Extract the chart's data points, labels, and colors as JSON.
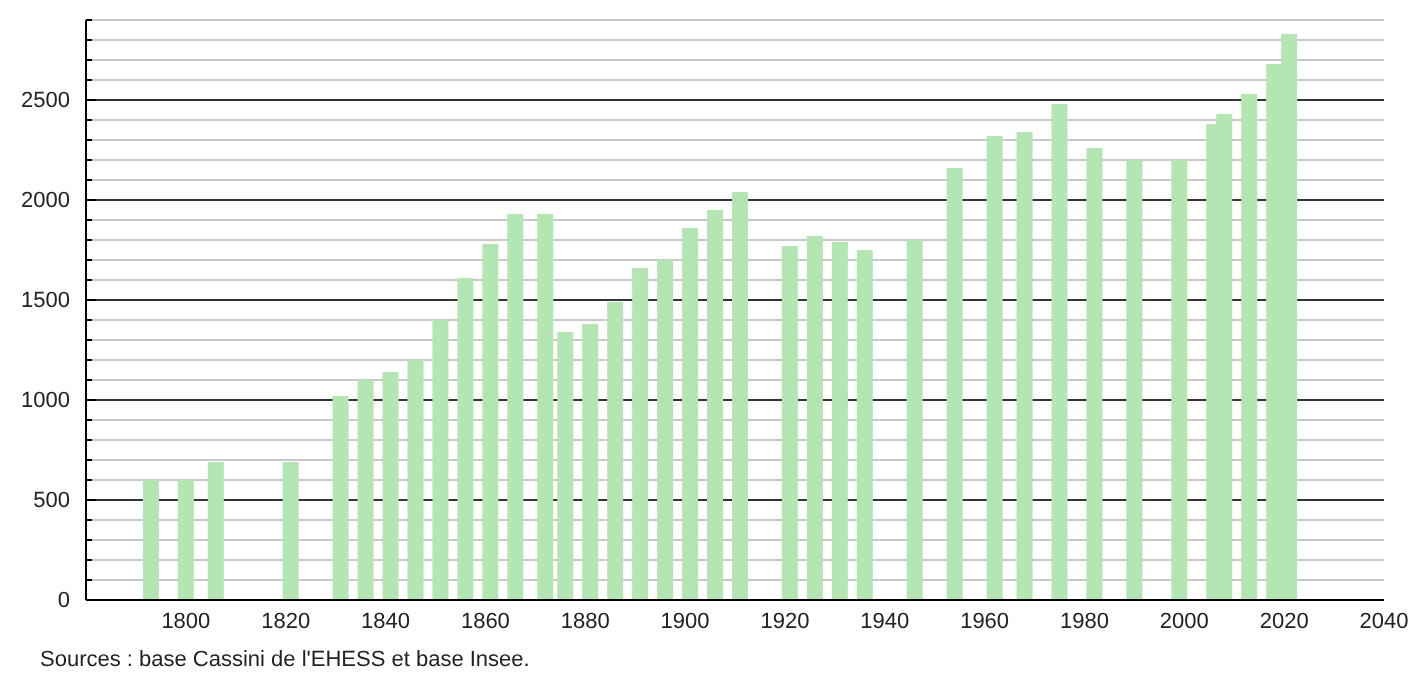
{
  "chart_data": {
    "type": "bar",
    "x": [
      1793,
      1800,
      1806,
      1821,
      1831,
      1836,
      1841,
      1846,
      1851,
      1856,
      1861,
      1866,
      1872,
      1876,
      1881,
      1886,
      1891,
      1896,
      1901,
      1906,
      1911,
      1921,
      1926,
      1931,
      1936,
      1946,
      1954,
      1962,
      1968,
      1975,
      1982,
      1990,
      1999,
      2006,
      2008,
      2013,
      2018,
      2021
    ],
    "values": [
      600,
      600,
      690,
      690,
      1020,
      1100,
      1140,
      1200,
      1400,
      1610,
      1780,
      1930,
      1930,
      1340,
      1380,
      1490,
      1660,
      1700,
      1860,
      1950,
      2040,
      1770,
      1820,
      1790,
      1750,
      1800,
      2160,
      2320,
      2340,
      2480,
      2260,
      2200,
      2200,
      2380,
      2430,
      2530,
      2680,
      2830
    ],
    "color": "#b3e6b3",
    "xlim": [
      1780,
      2040
    ],
    "xticks": [
      1800,
      1820,
      1840,
      1860,
      1880,
      1900,
      1920,
      1940,
      1960,
      1980,
      2000,
      2020,
      2040
    ],
    "ylim": [
      0,
      2900
    ],
    "yticks": [
      0,
      {
        "value": 100,
        "label": null
      },
      {
        "value": 200,
        "label": null
      },
      {
        "value": 300,
        "label": null
      },
      {
        "value": 400,
        "label": null
      },
      500,
      {
        "value": 600,
        "label": null
      },
      {
        "value": 700,
        "label": null
      },
      {
        "value": 800,
        "label": null
      },
      {
        "value": 900,
        "label": null
      },
      1000,
      {
        "value": 1100,
        "label": null
      },
      {
        "value": 1200,
        "label": null
      },
      {
        "value": 1300,
        "label": null
      },
      {
        "value": 1400,
        "label": null
      },
      1500,
      {
        "value": 1600,
        "label": null
      },
      {
        "value": 1700,
        "label": null
      },
      {
        "value": 1800,
        "label": null
      },
      {
        "value": 1900,
        "label": null
      },
      2000,
      {
        "value": 2100,
        "label": null
      },
      {
        "value": 2200,
        "label": null
      },
      {
        "value": 2300,
        "label": null
      },
      {
        "value": 2400,
        "label": null
      },
      2500,
      {
        "value": 2600,
        "label": null
      },
      {
        "value": 2700,
        "label": null
      },
      {
        "value": 2800,
        "label": null
      },
      {
        "value": 2900,
        "label": null
      }
    ],
    "grid": "y",
    "annotations": [
      "Sources : base Cassini de l'EHESS et base Insee."
    ]
  }
}
